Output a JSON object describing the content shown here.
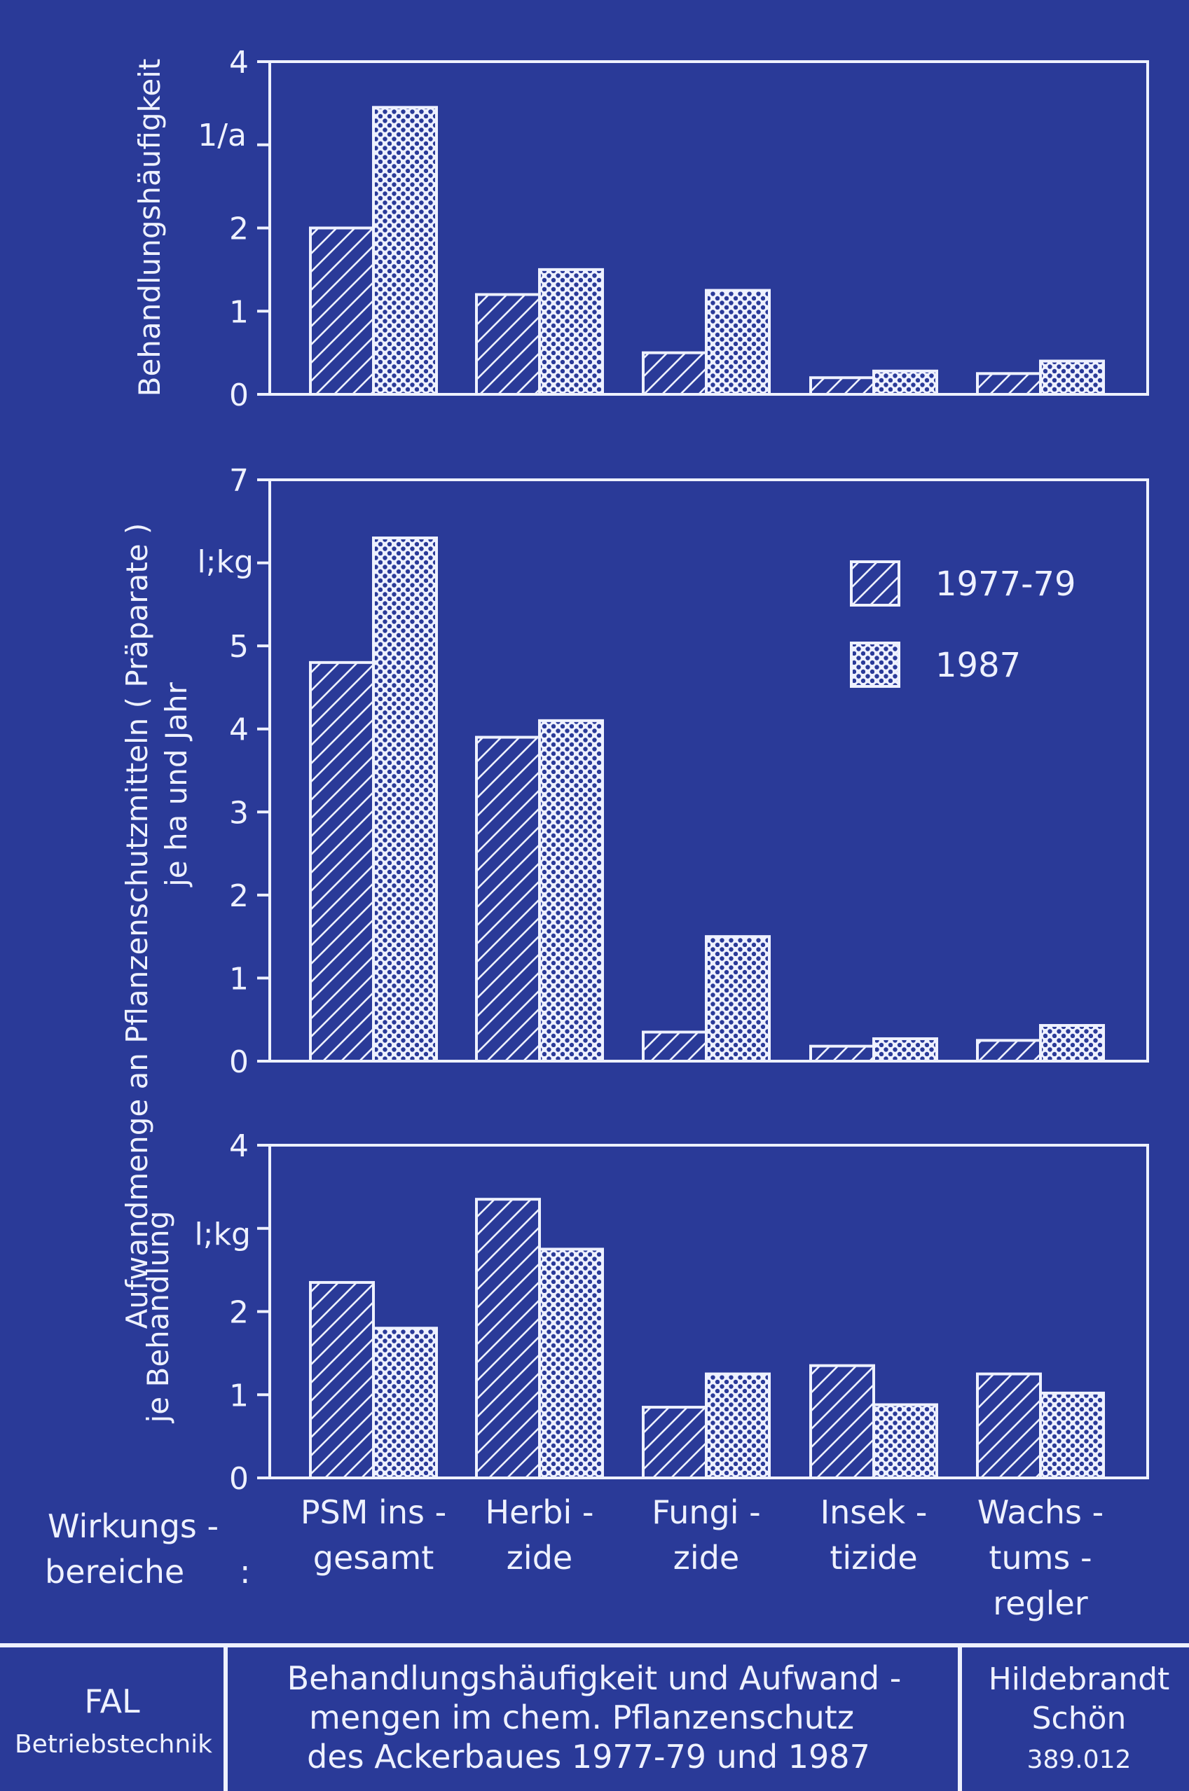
{
  "colors": {
    "background": "#2a3a98",
    "foreground": "#eef1ff"
  },
  "chart_data": [
    {
      "type": "bar",
      "ylabel": "Behandlungshäufigkeit",
      "unit": "1/a",
      "ylim": [
        0,
        4
      ],
      "yticks": [
        "0",
        "1",
        "2",
        "",
        "4"
      ],
      "categories": [
        "PSM insgesamt",
        "Herbizide",
        "Fungizide",
        "Insektizide",
        "Wachstumsregler"
      ],
      "series": [
        {
          "name": "1977-79",
          "pattern": "hatch",
          "values": [
            2.0,
            1.2,
            0.5,
            0.2,
            0.25
          ]
        },
        {
          "name": "1987",
          "pattern": "dots",
          "values": [
            3.45,
            1.5,
            1.25,
            0.28,
            0.4
          ]
        }
      ]
    },
    {
      "type": "bar",
      "unit": "l;kg",
      "ylim": [
        0,
        7
      ],
      "yticks": [
        "0",
        "1",
        "2",
        "3",
        "4",
        "5",
        "",
        "7"
      ],
      "categories": [
        "PSM insgesamt",
        "Herbizide",
        "Fungizide",
        "Insektizide",
        "Wachstumsregler"
      ],
      "series": [
        {
          "name": "1977-79",
          "pattern": "hatch",
          "values": [
            4.8,
            3.9,
            0.35,
            0.18,
            0.25
          ]
        },
        {
          "name": "1987",
          "pattern": "dots",
          "values": [
            6.3,
            4.1,
            1.5,
            0.27,
            0.43
          ]
        }
      ],
      "legend": {
        "position": "top-right",
        "items": [
          "1977-79",
          "1987"
        ]
      }
    },
    {
      "type": "bar",
      "unit": "l;kg",
      "ylim": [
        0,
        4
      ],
      "yticks": [
        "0",
        "1",
        "2",
        "",
        "4"
      ],
      "categories": [
        "PSM insgesamt",
        "Herbizide",
        "Fungizide",
        "Insektizide",
        "Wachstumsregler"
      ],
      "series": [
        {
          "name": "1977-79",
          "pattern": "hatch",
          "values": [
            2.35,
            3.35,
            0.85,
            1.35,
            1.25
          ]
        },
        {
          "name": "1987",
          "pattern": "dots",
          "values": [
            1.8,
            2.75,
            1.25,
            0.88,
            1.02
          ]
        }
      ]
    }
  ],
  "shared_ylabel": {
    "line1": "Aufwandmenge an Pflanzenschutzmitteln ( Präparate )",
    "line2_middle": "je ha und Jahr",
    "line2_bottom": "je Behandlung"
  },
  "categories_caption": {
    "line1": "Wirkungs -",
    "line2": "bereiche",
    "colon": ":"
  },
  "category_labels": [
    [
      "PSM ins -",
      "gesamt"
    ],
    [
      "Herbi -",
      "zide"
    ],
    [
      "Fungi -",
      "zide"
    ],
    [
      "Insek -",
      "tizide"
    ],
    [
      "Wachs -",
      "tums -",
      "regler"
    ]
  ],
  "footer": {
    "left": {
      "line1": "FAL",
      "line2": "Betriebstechnik"
    },
    "center": {
      "line1": "Behandlungshäufigkeit und Aufwand -",
      "line2": "mengen im chem. Pflanzenschutz",
      "line3": "des Ackerbaues 1977-79 und 1987"
    },
    "right": {
      "line1": "Hildebrandt",
      "line2": "Schön",
      "line3": "389.012"
    }
  }
}
